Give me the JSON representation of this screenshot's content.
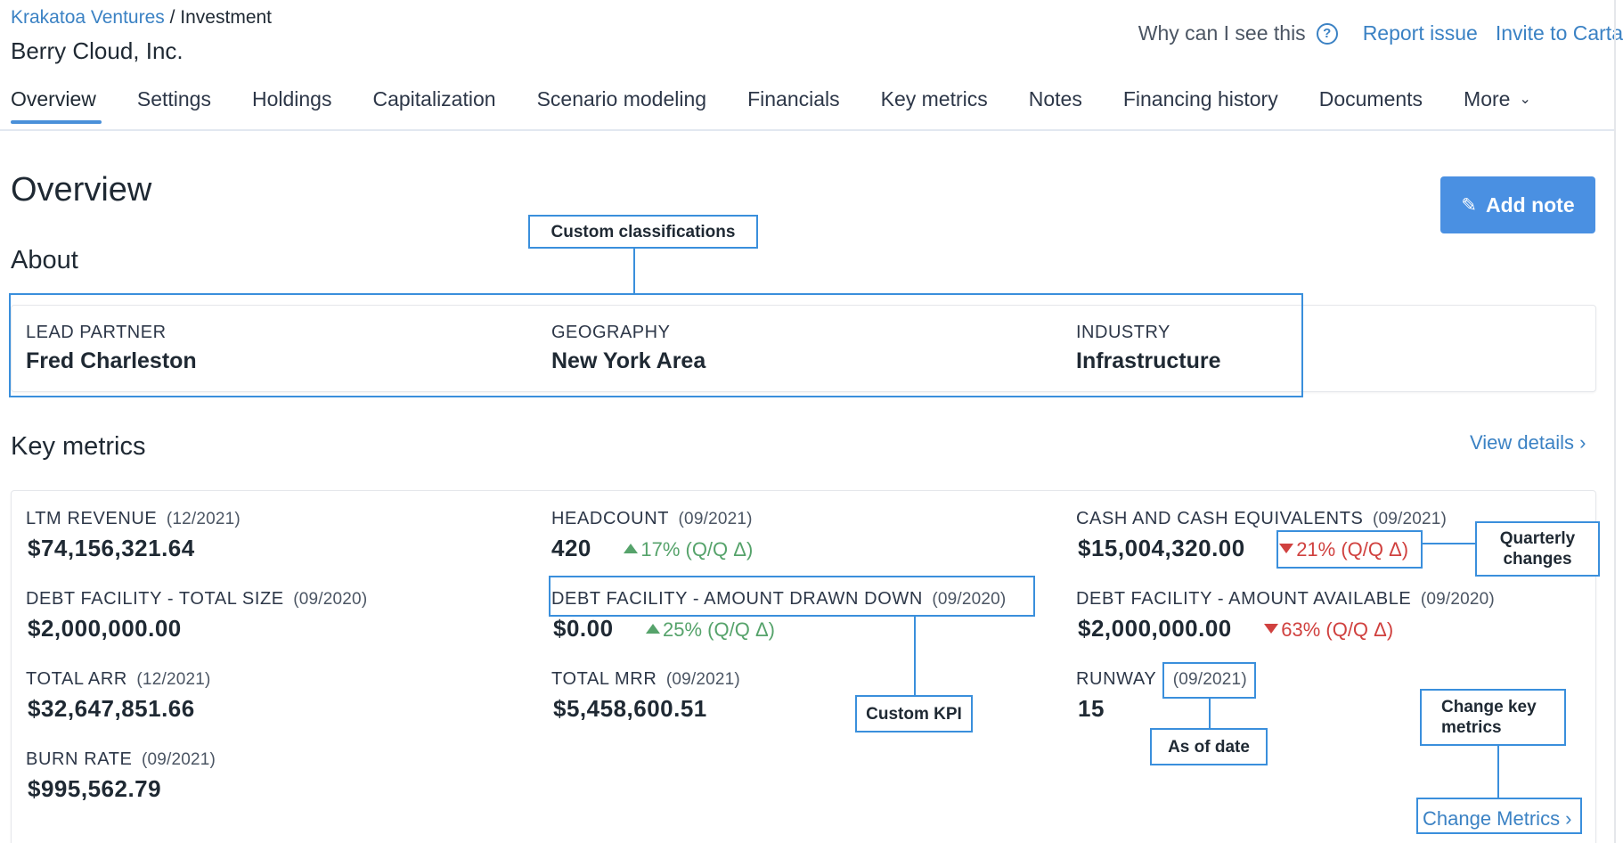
{
  "breadcrumb": {
    "org": "Krakatoa Ventures",
    "separator": " / ",
    "section": "Investment"
  },
  "company": {
    "name": "Berry Cloud, Inc."
  },
  "header_actions": {
    "why_label": "Why can I see this",
    "help_icon": "?",
    "report_issue": "Report issue",
    "invite": "Invite to Carta"
  },
  "tabs": [
    {
      "label": "Overview",
      "active": true
    },
    {
      "label": "Settings"
    },
    {
      "label": "Holdings"
    },
    {
      "label": "Capitalization"
    },
    {
      "label": "Scenario modeling"
    },
    {
      "label": "Financials"
    },
    {
      "label": "Key metrics"
    },
    {
      "label": "Notes"
    },
    {
      "label": "Financing history"
    },
    {
      "label": "Documents"
    },
    {
      "label": "More"
    }
  ],
  "overview": {
    "title": "Overview",
    "add_note_label": "Add note",
    "add_note_icon": "pencil-icon"
  },
  "about": {
    "title": "About",
    "fields": [
      {
        "label": "LEAD PARTNER",
        "value": "Fred Charleston"
      },
      {
        "label": "GEOGRAPHY",
        "value": "New York Area"
      },
      {
        "label": "INDUSTRY",
        "value": "Infrastructure"
      }
    ]
  },
  "key_metrics": {
    "title": "Key metrics",
    "view_details": "View details ›",
    "change_metrics": "Change Metrics ›",
    "items": [
      {
        "label": "LTM REVENUE",
        "date": "(12/2021)",
        "value": "$74,156,321.64"
      },
      {
        "label": "HEADCOUNT",
        "date": "(09/2021)",
        "value": "420",
        "change": "17% (Q/Q Δ)",
        "direction": "up"
      },
      {
        "label": "CASH AND CASH EQUIVALENTS",
        "date": "(09/2021)",
        "value": "$15,004,320.00",
        "change": "21% (Q/Q Δ)",
        "direction": "down"
      },
      {
        "label": "DEBT FACILITY - TOTAL SIZE",
        "date": "(09/2020)",
        "value": "$2,000,000.00"
      },
      {
        "label": "DEBT FACILITY - AMOUNT DRAWN DOWN",
        "date": "(09/2020)",
        "value": "$0.00",
        "change": "25% (Q/Q Δ)",
        "direction": "up"
      },
      {
        "label": "DEBT FACILITY - AMOUNT AVAILABLE",
        "date": "(09/2020)",
        "value": "$2,000,000.00",
        "change": "63% (Q/Q Δ)",
        "direction": "down"
      },
      {
        "label": "TOTAL ARR",
        "date": "(12/2021)",
        "value": "$32,647,851.66"
      },
      {
        "label": "TOTAL MRR",
        "date": "(09/2021)",
        "value": "$5,458,600.51"
      },
      {
        "label": "RUNWAY",
        "date": "(09/2021)",
        "value": "15"
      },
      {
        "label": "BURN RATE",
        "date": "(09/2021)",
        "value": "$995,562.79"
      }
    ]
  },
  "annotations": {
    "custom_classifications": "Custom classifications",
    "quarterly_changes": "Quarterly changes",
    "custom_kpi": "Custom KPI",
    "as_of_date": "As of date",
    "change_key_metrics": "Change key metrics"
  },
  "colors": {
    "link": "#3b82c4",
    "accent_button": "#4a90e2",
    "positive": "#56a36b",
    "negative": "#d0413f",
    "annotation": "#3a8fdc"
  }
}
